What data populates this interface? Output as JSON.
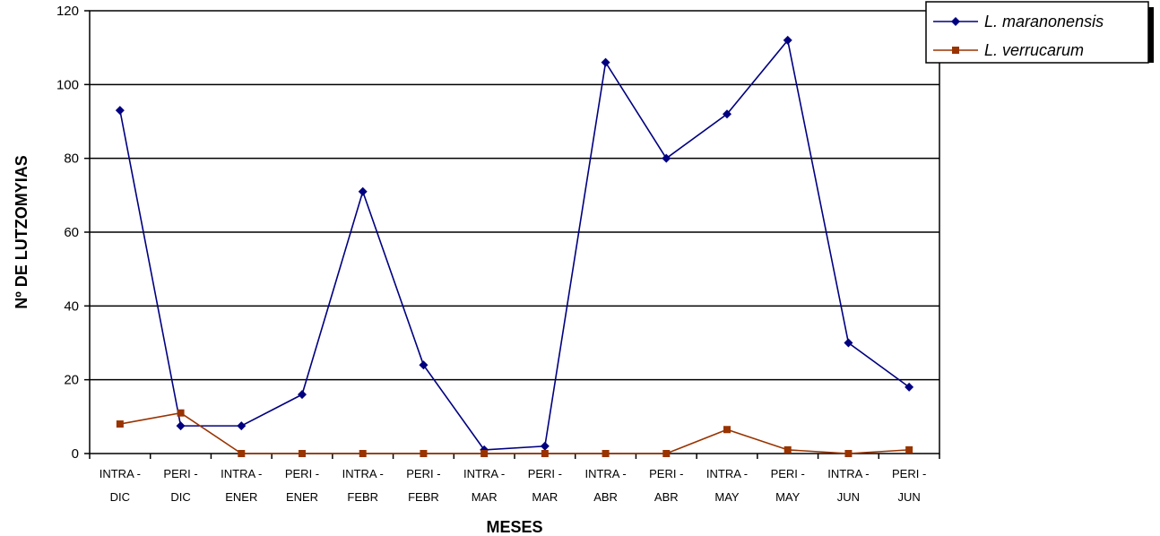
{
  "chart_data": {
    "type": "line",
    "xlabel": "MESES",
    "ylabel": "Nº DE LUTZOMYIAS",
    "ylim": [
      0,
      120
    ],
    "yticks": [
      "0",
      "20",
      "40",
      "60",
      "80",
      "100",
      "120"
    ],
    "grid": true,
    "legend_position": "top-right",
    "categories": [
      [
        "INTRA -",
        "DIC"
      ],
      [
        "PERI -",
        "DIC"
      ],
      [
        "INTRA -",
        "ENER"
      ],
      [
        "PERI -",
        "ENER"
      ],
      [
        "INTRA -",
        "FEBR"
      ],
      [
        "PERI -",
        "FEBR"
      ],
      [
        "INTRA -",
        "MAR"
      ],
      [
        "PERI -",
        "MAR"
      ],
      [
        "INTRA -",
        "ABR"
      ],
      [
        "PERI -",
        "ABR"
      ],
      [
        "INTRA -",
        "MAY"
      ],
      [
        "PERI -",
        "MAY"
      ],
      [
        "INTRA -",
        "JUN"
      ],
      [
        "PERI -",
        "JUN"
      ]
    ],
    "series": [
      {
        "name": "L. maranonensis",
        "color": "#000080",
        "marker": "diamond",
        "values": [
          93,
          7.5,
          7.5,
          16,
          71,
          24,
          1,
          2,
          106,
          80,
          92,
          112,
          30,
          18
        ]
      },
      {
        "name": "L. verrucarum",
        "color": "#993300",
        "marker": "square",
        "values": [
          8,
          11,
          0,
          0,
          0,
          0,
          0,
          0,
          0,
          0,
          6.5,
          1,
          0,
          1
        ]
      }
    ]
  }
}
